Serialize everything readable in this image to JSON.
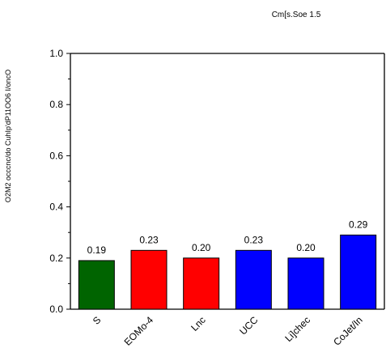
{
  "chart_data": {
    "type": "bar",
    "title": "Cm[s.Soe 1.5",
    "xlabel": "",
    "ylabel": "O2M2 occcnc/do CuhIp'dP11OO6 I/oncO",
    "categories": [
      "S",
      "EOMo-4",
      "Lnc",
      "UCC",
      "Li]chec",
      "CoJet/In"
    ],
    "values": [
      0.19,
      0.23,
      0.2,
      0.23,
      0.2,
      0.29
    ],
    "value_labels": [
      "0.19",
      "0.23",
      "0.20",
      "0.23",
      "0.20",
      "0.29"
    ],
    "colors": [
      "#006400",
      "#ff0000",
      "#ff0000",
      "#0000ff",
      "#0000ff",
      "#0000ff"
    ],
    "ylim": [
      0,
      1.0
    ],
    "yticks": [
      0.0,
      0.2,
      0.4,
      0.6,
      0.8,
      1.0
    ],
    "ytick_labels": [
      "0.0",
      "0.2",
      "0.4",
      "0.6",
      "0.8",
      "1.0"
    ],
    "grid": false,
    "legend": "none"
  }
}
